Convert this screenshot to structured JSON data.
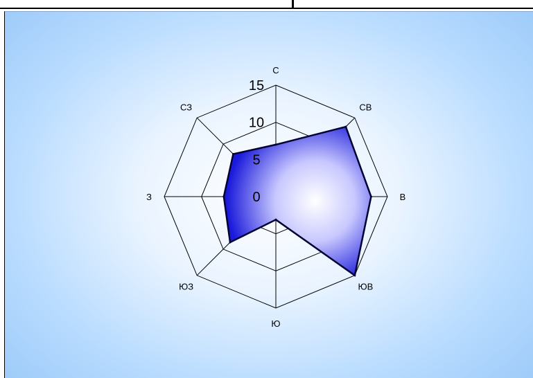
{
  "chart_data": {
    "type": "radar",
    "categories": [
      "С",
      "СВ",
      "В",
      "ЮВ",
      "Ю",
      "ЮЗ",
      "З",
      "СЗ"
    ],
    "series": [
      {
        "values": [
          7.0,
          13.3,
          12.8,
          15.0,
          3.1,
          8.7,
          7.0,
          8.1
        ]
      }
    ],
    "rlim": [
      0,
      15
    ],
    "ticks": [
      0,
      5,
      10,
      15
    ],
    "tick_labels": [
      "0",
      "5",
      "10",
      "15"
    ],
    "grid": true,
    "fill_colors": [
      "#1a1adb",
      "#ffffff"
    ],
    "line_color": "#000033",
    "background_colors": [
      "#ffffff",
      "#9ccaf9"
    ]
  }
}
